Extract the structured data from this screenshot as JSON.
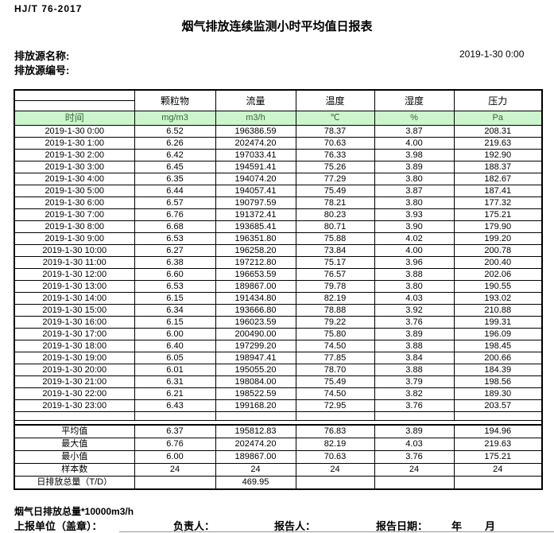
{
  "page": {
    "standard": "HJ/T  76-2017",
    "title": "烟气排放连续监测小时平均值日报表",
    "source_name_label": "排放源名称:",
    "source_code_label": "排放源编号:",
    "report_datetime": "2019-1-30  0:00"
  },
  "table": {
    "time_header": "时间",
    "columns": [
      {
        "label": "颗粒物",
        "unit": "mg/m3"
      },
      {
        "label": "流量",
        "unit": "m3/h"
      },
      {
        "label": "温度",
        "unit": "℃"
      },
      {
        "label": "湿度",
        "unit": "%"
      },
      {
        "label": "压力",
        "unit": "Pa"
      }
    ],
    "rows": [
      {
        "time": "2019-1-30  0:00",
        "values": [
          "6.52",
          "196386.59",
          "78.37",
          "3.87",
          "208.31"
        ]
      },
      {
        "time": "2019-1-30  1:00",
        "values": [
          "6.26",
          "202474.20",
          "70.63",
          "4.00",
          "219.63"
        ]
      },
      {
        "time": "2019-1-30  2:00",
        "values": [
          "6.42",
          "197033.41",
          "76.33",
          "3.98",
          "192.90"
        ]
      },
      {
        "time": "2019-1-30  3:00",
        "values": [
          "6.45",
          "194591.41",
          "75.26",
          "3.89",
          "188.37"
        ]
      },
      {
        "time": "2019-1-30  4:00",
        "values": [
          "6.35",
          "194074.20",
          "77.29",
          "3.80",
          "182.67"
        ]
      },
      {
        "time": "2019-1-30  5:00",
        "values": [
          "6.44",
          "194057.41",
          "75.49",
          "3.87",
          "187.41"
        ]
      },
      {
        "time": "2019-1-30  6:00",
        "values": [
          "6.57",
          "190797.59",
          "78.21",
          "3.80",
          "177.32"
        ]
      },
      {
        "time": "2019-1-30  7:00",
        "values": [
          "6.76",
          "191372.41",
          "80.23",
          "3.93",
          "175.21"
        ]
      },
      {
        "time": "2019-1-30  8:00",
        "values": [
          "6.68",
          "193685.41",
          "80.71",
          "3.90",
          "179.90"
        ]
      },
      {
        "time": "2019-1-30  9:00",
        "values": [
          "6.53",
          "196351.80",
          "75.88",
          "4.02",
          "199.20"
        ]
      },
      {
        "time": "2019-1-30 10:00",
        "values": [
          "6.27",
          "196258.20",
          "73.84",
          "4.00",
          "200.78"
        ]
      },
      {
        "time": "2019-1-30 11:00",
        "values": [
          "6.38",
          "197212.80",
          "75.17",
          "3.96",
          "200.40"
        ]
      },
      {
        "time": "2019-1-30 12:00",
        "values": [
          "6.60",
          "196653.59",
          "76.57",
          "3.88",
          "202.06"
        ]
      },
      {
        "time": "2019-1-30 13:00",
        "values": [
          "6.53",
          "189867.00",
          "79.78",
          "3.80",
          "190.55"
        ]
      },
      {
        "time": "2019-1-30 14:00",
        "values": [
          "6.15",
          "191434.80",
          "82.19",
          "4.03",
          "193.02"
        ]
      },
      {
        "time": "2019-1-30 15:00",
        "values": [
          "6.34",
          "193666.80",
          "78.88",
          "3.92",
          "210.88"
        ]
      },
      {
        "time": "2019-1-30 16:00",
        "values": [
          "6.15",
          "196023.59",
          "79.22",
          "3.76",
          "199.31"
        ]
      },
      {
        "time": "2019-1-30 17:00",
        "values": [
          "6.00",
          "200490.00",
          "75.80",
          "3.89",
          "196.09"
        ]
      },
      {
        "time": "2019-1-30 18:00",
        "values": [
          "6.40",
          "197299.20",
          "74.50",
          "3.88",
          "198.45"
        ]
      },
      {
        "time": "2019-1-30 19:00",
        "values": [
          "6.05",
          "198947.41",
          "77.85",
          "3.84",
          "200.66"
        ]
      },
      {
        "time": "2019-1-30 20:00",
        "values": [
          "6.01",
          "195055.20",
          "78.70",
          "3.88",
          "184.39"
        ]
      },
      {
        "time": "2019-1-30 21:00",
        "values": [
          "6.31",
          "198084.00",
          "75.49",
          "3.79",
          "198.56"
        ]
      },
      {
        "time": "2019-1-30 22:00",
        "values": [
          "6.21",
          "198522.59",
          "74.50",
          "3.82",
          "189.30"
        ]
      },
      {
        "time": "2019-1-30 23:00",
        "values": [
          "6.43",
          "199168.20",
          "72.95",
          "3.76",
          "203.57"
        ]
      }
    ],
    "summary": [
      {
        "label": "平均值",
        "values": [
          "6.37",
          "195812.83",
          "76.83",
          "3.89",
          "194.96"
        ]
      },
      {
        "label": "最大值",
        "values": [
          "6.76",
          "202474.20",
          "82.19",
          "4.03",
          "219.63"
        ]
      },
      {
        "label": "最小值",
        "values": [
          "6.00",
          "189867.00",
          "70.63",
          "3.76",
          "175.21"
        ]
      },
      {
        "label": "样本数",
        "values": [
          "24",
          "24",
          "24",
          "24",
          "24"
        ]
      },
      {
        "label": "日排放总量（T/D）",
        "values": [
          "",
          "469.95",
          "",
          "",
          ""
        ]
      }
    ]
  },
  "footer": {
    "note": "烟气日排放总量*10000m3/h",
    "report_unit_label": "上报单位（盖章）：",
    "responsible_label": "负责人：",
    "reporter_label": "报告人：",
    "report_date_label": "报告日期：",
    "year_label": "年",
    "month_label": "月"
  },
  "colors": {
    "unit_row_bg": "#cdf5cd",
    "unit_row_text": "#2f6b2f",
    "border": "#000000"
  }
}
